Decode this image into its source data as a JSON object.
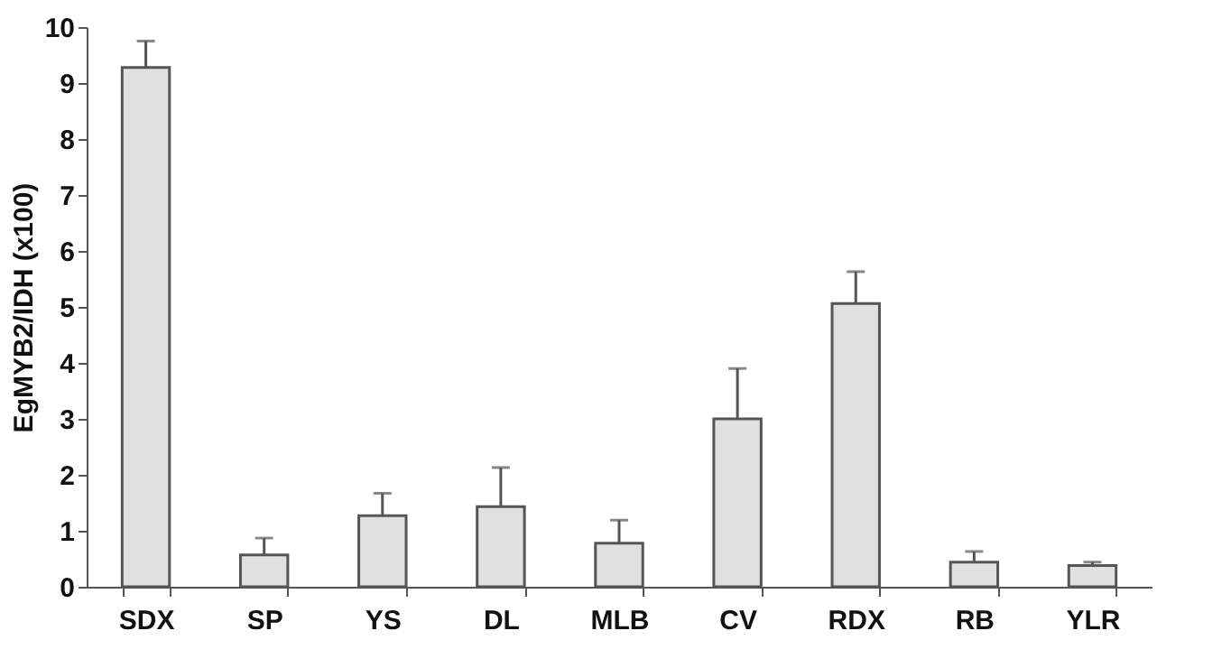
{
  "chart_data": {
    "type": "bar",
    "ylabel": "EgMYB2/IDH (x100)",
    "categories": [
      "SDX",
      "SP",
      "YS",
      "DL",
      "MLB",
      "CV",
      "RDX",
      "RB",
      "YLR"
    ],
    "values": [
      9.28,
      0.57,
      1.27,
      1.43,
      0.78,
      3.0,
      5.06,
      0.44,
      0.38
    ],
    "errors": [
      [
        9.28,
        9.75
      ],
      [
        0.57,
        0.87
      ],
      [
        1.27,
        1.67
      ],
      [
        1.43,
        2.13
      ],
      [
        0.78,
        1.19
      ],
      [
        3.0,
        3.9
      ],
      [
        5.06,
        5.63
      ],
      [
        0.44,
        0.63
      ],
      [
        0.38,
        0.44
      ]
    ],
    "color": "#e0e0e0",
    "ylim": [
      0,
      10
    ],
    "yticks": [
      0,
      1,
      2,
      3,
      4,
      5,
      6,
      7,
      8,
      9,
      10
    ],
    "grid": false
  }
}
